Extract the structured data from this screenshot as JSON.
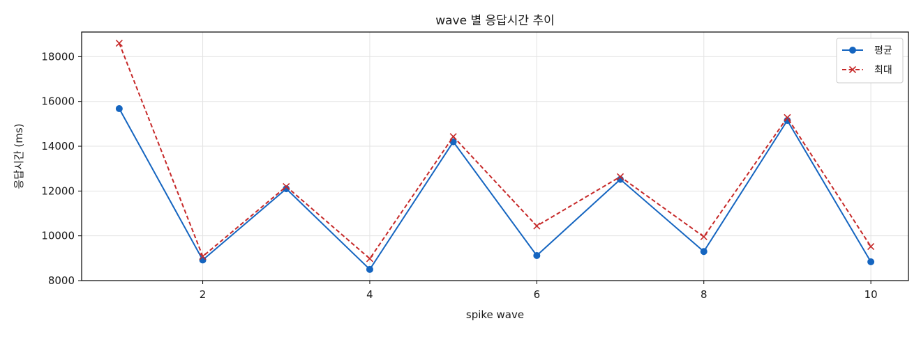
{
  "chart_data": {
    "type": "line",
    "title": "wave 별 응답시간 추이",
    "xlabel": "spike wave",
    "ylabel": "응답시간 (ms)",
    "x": [
      1,
      2,
      3,
      4,
      5,
      6,
      7,
      8,
      9,
      10
    ],
    "xlim": [
      0.55,
      10.45
    ],
    "ylim": [
      8000,
      19100
    ],
    "xticks": [
      2,
      4,
      6,
      8,
      10
    ],
    "yticks": [
      8000,
      10000,
      12000,
      14000,
      16000,
      18000
    ],
    "grid": true,
    "legend_position": "top-right",
    "series": [
      {
        "name": "평균",
        "color": "#1565c0",
        "line_style": "solid",
        "marker": "circle",
        "values": [
          15680,
          8920,
          12100,
          8500,
          14200,
          9120,
          12520,
          9300,
          15150,
          8840
        ]
      },
      {
        "name": "최대",
        "color": "#c62828",
        "line_style": "dashed",
        "marker": "x",
        "values": [
          18600,
          9080,
          12200,
          8980,
          14430,
          10440,
          12640,
          9960,
          15280,
          9520
        ]
      }
    ]
  }
}
